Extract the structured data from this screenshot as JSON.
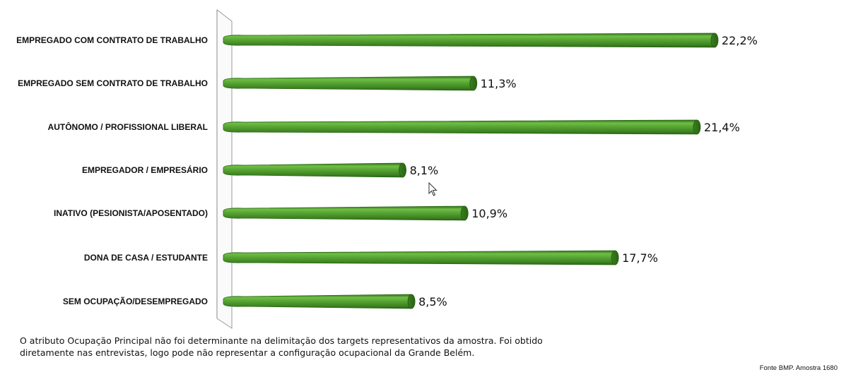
{
  "chart_data": {
    "type": "bar",
    "orientation": "horizontal",
    "categories": [
      "EMPREGADO COM CONTRATO DE TRABALHO",
      "EMPREGADO SEM CONTRATO DE TRABALHO",
      "AUTÔNOMO / PROFISSIONAL LIBERAL",
      "EMPREGADOR / EMPRESÁRIO",
      "INATIVO (PESIONISTA/APOSENTADO)",
      "DONA DE CASA / ESTUDANTE",
      "SEM OCUPAÇÃO/DESEMPREGADO"
    ],
    "values": [
      22.2,
      11.3,
      21.4,
      8.1,
      10.9,
      17.7,
      8.5
    ],
    "value_labels": [
      "22,2%",
      "11,3%",
      "21,4%",
      "8,1%",
      "10,9%",
      "17,7%",
      "8,5%"
    ],
    "unit": "%",
    "xlim": [
      0,
      22.2
    ],
    "bar_color": "#4f9a2e",
    "grid": false,
    "legend": "none"
  },
  "footnote": "O atributo Ocupação Principal não foi determinante na delimitação dos targets representativos da amostra. Foi obtido diretamente nas entrevistas, logo pode não representar a configuração ocupacional da Grande Belém.",
  "source": "Fonte BMP. Amostra 1680"
}
